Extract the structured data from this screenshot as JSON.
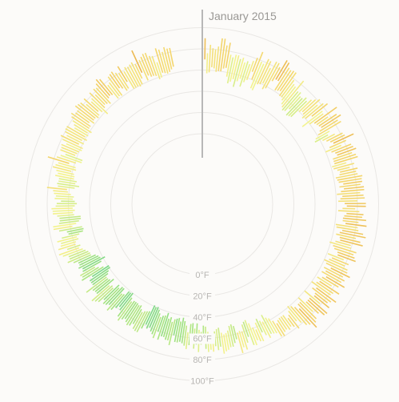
{
  "chart_data": {
    "type": "radial-bar",
    "title": "",
    "month_label": "January 2015",
    "radial_unit": "°F",
    "radial_ticks": [
      {
        "value": 0,
        "label": "0°F"
      },
      {
        "value": 20,
        "label": "20°F"
      },
      {
        "value": 40,
        "label": "40°F"
      },
      {
        "value": 60,
        "label": "60°F"
      },
      {
        "value": 80,
        "label": "80°F"
      },
      {
        "value": 100,
        "label": "100°F"
      }
    ],
    "rlim": [
      0,
      100
    ],
    "days_in_period": 365,
    "color_scale": [
      {
        "temp": 40,
        "color": "#3cc88a"
      },
      {
        "temp": 55,
        "color": "#9fe27a"
      },
      {
        "temp": 65,
        "color": "#f3f48a"
      },
      {
        "temp": 75,
        "color": "#f4d567"
      },
      {
        "temp": 85,
        "color": "#e8a53a"
      }
    ],
    "series": [
      {
        "day_min": [
          58,
          70,
          57,
          58,
          63,
          62,
          59,
          60,
          60,
          63,
          64,
          56,
          50,
          52,
          55,
          48,
          54,
          57,
          50,
          55,
          58,
          67,
          60,
          52,
          51,
          58,
          59,
          61,
          56,
          58,
          67,
          70,
          70,
          61,
          62,
          63,
          59,
          59,
          57,
          54,
          52,
          50,
          51,
          55,
          49,
          50,
          51,
          60,
          62,
          61,
          58,
          60,
          66,
          53,
          60,
          64,
          65,
          66,
          67,
          64,
          61,
          57,
          55,
          62,
          65,
          68,
          70,
          65,
          60,
          65,
          68,
          69,
          64,
          64,
          64,
          61,
          62,
          65,
          67,
          66,
          62,
          63,
          64,
          68,
          64,
          68,
          65,
          61,
          66,
          64,
          62,
          68,
          70,
          66,
          62,
          70,
          68,
          67,
          67,
          70,
          61,
          62,
          68,
          66,
          63,
          67,
          68,
          64,
          59,
          63,
          65,
          69,
          70,
          61,
          66,
          64,
          60,
          63,
          69,
          63,
          66,
          63,
          69,
          66,
          62,
          66,
          64,
          60,
          67,
          64,
          69,
          70,
          60,
          68,
          68,
          68,
          60,
          64,
          64,
          68,
          64,
          61,
          59,
          63,
          66,
          68,
          63,
          63,
          63,
          64,
          66,
          62,
          58,
          56,
          52,
          58,
          56,
          53,
          56,
          62,
          59,
          54,
          50,
          51,
          53,
          59,
          58,
          59,
          52,
          50,
          51,
          55,
          57,
          58,
          56,
          51,
          52,
          54,
          60,
          57,
          54,
          49,
          48,
          54,
          52,
          46,
          51,
          46,
          47,
          55,
          49,
          45,
          42,
          46,
          43,
          44,
          45,
          48,
          44,
          46,
          41,
          44,
          45,
          47,
          44,
          41,
          39,
          40,
          39,
          46,
          47,
          48,
          50,
          48,
          45,
          46,
          45,
          45,
          45,
          47,
          44,
          40,
          41,
          41,
          46,
          47,
          42,
          42,
          45,
          43,
          49,
          48,
          50,
          43,
          46,
          47,
          47,
          44,
          42,
          39,
          39,
          44,
          48,
          51,
          43,
          38,
          42,
          43,
          45,
          49,
          49,
          50,
          52,
          54,
          57,
          55,
          59,
          58,
          55,
          56,
          53,
          49,
          48,
          49,
          58,
          54,
          51,
          49,
          49,
          55,
          56,
          54,
          56,
          54,
          52,
          54,
          56,
          55,
          58,
          61,
          62,
          55,
          51,
          55,
          54,
          57,
          57,
          58,
          61,
          57,
          58,
          65,
          59,
          54,
          54,
          62,
          61,
          60,
          58,
          58,
          63,
          59,
          62,
          58,
          61,
          59,
          61,
          58,
          62,
          62,
          65,
          61,
          63,
          63,
          61,
          62,
          65,
          62,
          57,
          63,
          65,
          64,
          62,
          67,
          68,
          67,
          61,
          62,
          61,
          68,
          66,
          62,
          63,
          69,
          60,
          60,
          60,
          59,
          60,
          65,
          70,
          61,
          65,
          63,
          63,
          62,
          58,
          59,
          63,
          62,
          61,
          62,
          64,
          66
        ],
        "day_max": [
          69,
          90,
          76,
          84,
          81,
          80,
          83,
          91,
          91,
          85,
          88,
          77,
          75,
          78,
          78,
          75,
          77,
          73,
          75,
          73,
          77,
          81,
          88,
          79,
          78,
          84,
          83,
          77,
          85,
          85,
          82,
          91,
          90,
          86,
          85,
          86,
          86,
          79,
          76,
          75,
          84,
          73,
          74,
          71,
          71,
          74,
          72,
          76,
          79,
          82,
          77,
          82,
          85,
          77,
          76,
          90,
          78,
          86,
          89,
          84,
          86,
          72,
          69,
          75,
          82,
          83,
          91,
          82,
          76,
          85,
          86,
          88,
          83,
          86,
          87,
          75,
          82,
          77,
          84,
          82,
          83,
          87,
          86,
          86,
          84,
          87,
          87,
          83,
          86,
          87,
          80,
          88,
          88,
          78,
          82,
          86,
          85,
          89,
          82,
          90,
          82,
          83,
          88,
          91,
          82,
          87,
          90,
          79,
          80,
          86,
          84,
          86,
          88,
          77,
          83,
          80,
          84,
          85,
          89,
          83,
          86,
          84,
          89,
          84,
          78,
          88,
          83,
          82,
          90,
          86,
          84,
          88,
          79,
          90,
          89,
          84,
          79,
          86,
          88,
          92,
          86,
          84,
          79,
          75,
          82,
          78,
          76,
          78,
          76,
          77,
          80,
          79,
          74,
          73,
          72,
          75,
          71,
          67,
          75,
          74,
          72,
          76,
          75,
          66,
          71,
          77,
          74,
          79,
          65,
          68,
          71,
          71,
          73,
          74,
          76,
          69,
          72,
          68,
          73,
          71,
          73,
          70,
          65,
          66,
          73,
          66,
          70,
          65,
          67,
          71,
          68,
          66,
          65,
          66,
          66,
          60,
          70,
          66,
          66,
          64,
          64,
          68,
          61,
          68,
          65,
          63,
          60,
          62,
          59,
          64,
          69,
          69,
          68,
          64,
          67,
          68,
          66,
          64,
          66,
          69,
          66,
          60,
          58,
          61,
          65,
          68,
          63,
          65,
          66,
          63,
          68,
          70,
          72,
          64,
          64,
          65,
          71,
          62,
          62,
          62,
          58,
          68,
          66,
          67,
          63,
          62,
          65,
          63,
          63,
          67,
          72,
          69,
          69,
          74,
          77,
          68,
          76,
          73,
          72,
          75,
          70,
          63,
          64,
          71,
          76,
          76,
          70,
          69,
          69,
          71,
          75,
          75,
          76,
          72,
          71,
          67,
          73,
          72,
          74,
          75,
          81,
          71,
          72,
          71,
          71,
          75,
          73,
          75,
          79,
          77,
          75,
          86,
          78,
          75,
          71,
          77,
          77,
          78,
          74,
          79,
          82,
          77,
          80,
          81,
          81,
          74,
          76,
          79,
          82,
          84,
          81,
          81,
          85,
          84,
          83,
          78,
          83,
          76,
          78,
          83,
          78,
          83,
          82,
          85,
          88,
          86,
          77,
          78,
          83,
          84,
          85,
          82,
          80,
          86,
          79,
          82,
          81,
          82,
          83,
          80,
          93,
          82,
          84,
          86,
          86,
          82,
          81,
          74,
          87,
          85,
          82,
          86,
          84,
          84
        ]
      }
    ]
  }
}
